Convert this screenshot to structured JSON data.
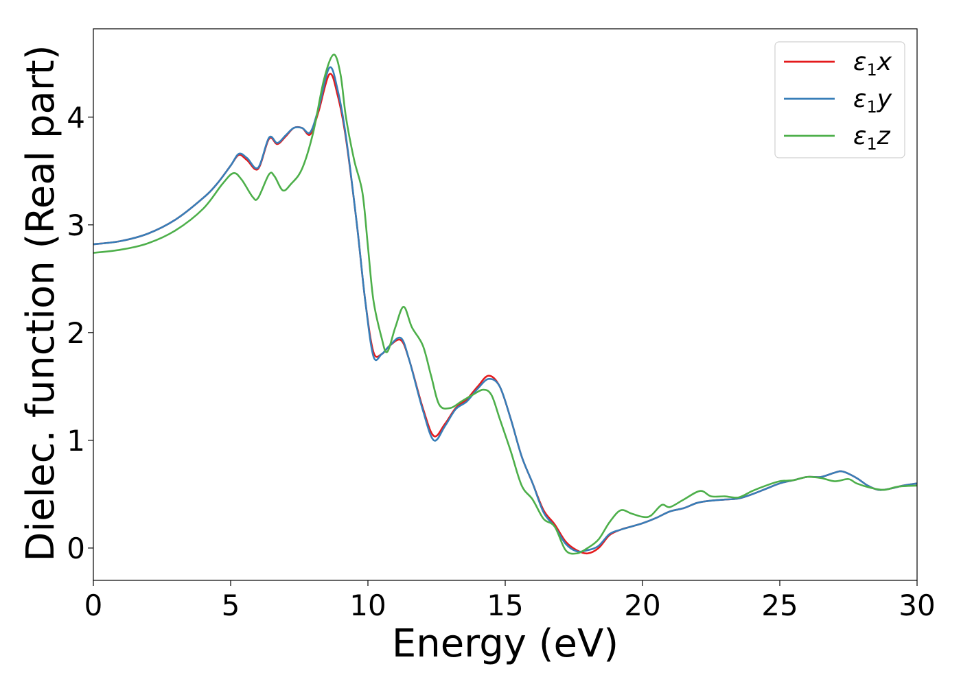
{
  "chart_data": {
    "type": "line",
    "title": "",
    "xlabel": "Energy (eV)",
    "ylabel": "Dielec. function (Real part)",
    "xlim": [
      0,
      30
    ],
    "ylim": [
      -0.3,
      4.82
    ],
    "xticks": [
      0,
      5,
      10,
      15,
      20,
      25,
      30
    ],
    "yticks": [
      0,
      1,
      2,
      3,
      4
    ],
    "grid": false,
    "legend_position": "top-right",
    "series": [
      {
        "name": "ε1x",
        "legend_base": "ε",
        "legend_sub": "1",
        "legend_suffix": "x",
        "color": "#e41a1c",
        "points": [
          [
            0,
            2.82
          ],
          [
            1,
            2.85
          ],
          [
            2,
            2.92
          ],
          [
            3,
            3.05
          ],
          [
            4,
            3.25
          ],
          [
            4.5,
            3.38
          ],
          [
            5.0,
            3.55
          ],
          [
            5.3,
            3.65
          ],
          [
            5.6,
            3.6
          ],
          [
            6.0,
            3.52
          ],
          [
            6.4,
            3.8
          ],
          [
            6.7,
            3.75
          ],
          [
            7.0,
            3.82
          ],
          [
            7.3,
            3.9
          ],
          [
            7.6,
            3.9
          ],
          [
            7.9,
            3.84
          ],
          [
            8.2,
            4.05
          ],
          [
            8.6,
            4.4
          ],
          [
            8.9,
            4.2
          ],
          [
            9.2,
            3.8
          ],
          [
            9.6,
            3.0
          ],
          [
            9.9,
            2.3
          ],
          [
            10.2,
            1.82
          ],
          [
            10.5,
            1.8
          ],
          [
            10.8,
            1.88
          ],
          [
            11.2,
            1.93
          ],
          [
            11.5,
            1.75
          ],
          [
            12.0,
            1.3
          ],
          [
            12.4,
            1.04
          ],
          [
            12.8,
            1.15
          ],
          [
            13.2,
            1.3
          ],
          [
            13.6,
            1.38
          ],
          [
            14.0,
            1.5
          ],
          [
            14.4,
            1.6
          ],
          [
            14.8,
            1.5
          ],
          [
            15.2,
            1.2
          ],
          [
            15.6,
            0.85
          ],
          [
            16.0,
            0.6
          ],
          [
            16.4,
            0.35
          ],
          [
            16.8,
            0.22
          ],
          [
            17.2,
            0.06
          ],
          [
            17.6,
            -0.02
          ],
          [
            18.0,
            -0.05
          ],
          [
            18.4,
            0.0
          ],
          [
            18.8,
            0.12
          ],
          [
            19.2,
            0.17
          ],
          [
            19.6,
            0.2
          ],
          [
            20.0,
            0.23
          ],
          [
            20.5,
            0.28
          ],
          [
            21.0,
            0.34
          ],
          [
            21.5,
            0.37
          ],
          [
            22.0,
            0.42
          ],
          [
            22.5,
            0.44
          ],
          [
            23.0,
            0.45
          ],
          [
            23.5,
            0.46
          ],
          [
            24.0,
            0.5
          ],
          [
            24.5,
            0.55
          ],
          [
            25.0,
            0.6
          ],
          [
            25.5,
            0.63
          ],
          [
            26.0,
            0.66
          ],
          [
            26.5,
            0.66
          ],
          [
            27.0,
            0.7
          ],
          [
            27.3,
            0.71
          ],
          [
            27.8,
            0.65
          ],
          [
            28.2,
            0.58
          ],
          [
            28.6,
            0.54
          ],
          [
            29.0,
            0.55
          ],
          [
            29.5,
            0.58
          ],
          [
            30,
            0.6
          ]
        ]
      },
      {
        "name": "ε1y",
        "legend_base": "ε",
        "legend_sub": "1",
        "legend_suffix": "y",
        "color": "#377eb8",
        "points": [
          [
            0,
            2.82
          ],
          [
            1,
            2.85
          ],
          [
            2,
            2.92
          ],
          [
            3,
            3.05
          ],
          [
            4,
            3.25
          ],
          [
            4.5,
            3.38
          ],
          [
            5.0,
            3.55
          ],
          [
            5.3,
            3.66
          ],
          [
            5.6,
            3.62
          ],
          [
            6.0,
            3.53
          ],
          [
            6.4,
            3.81
          ],
          [
            6.7,
            3.76
          ],
          [
            7.0,
            3.83
          ],
          [
            7.3,
            3.9
          ],
          [
            7.6,
            3.9
          ],
          [
            7.9,
            3.86
          ],
          [
            8.2,
            4.08
          ],
          [
            8.6,
            4.46
          ],
          [
            8.9,
            4.25
          ],
          [
            9.2,
            3.82
          ],
          [
            9.6,
            3.0
          ],
          [
            9.9,
            2.3
          ],
          [
            10.2,
            1.78
          ],
          [
            10.5,
            1.8
          ],
          [
            10.8,
            1.88
          ],
          [
            11.2,
            1.95
          ],
          [
            11.5,
            1.75
          ],
          [
            12.0,
            1.28
          ],
          [
            12.4,
            1.0
          ],
          [
            12.8,
            1.13
          ],
          [
            13.2,
            1.29
          ],
          [
            13.6,
            1.36
          ],
          [
            14.0,
            1.48
          ],
          [
            14.4,
            1.57
          ],
          [
            14.8,
            1.5
          ],
          [
            15.2,
            1.2
          ],
          [
            15.6,
            0.85
          ],
          [
            16.0,
            0.6
          ],
          [
            16.4,
            0.33
          ],
          [
            16.8,
            0.2
          ],
          [
            17.2,
            0.04
          ],
          [
            17.6,
            -0.03
          ],
          [
            18.0,
            -0.02
          ],
          [
            18.4,
            0.02
          ],
          [
            18.8,
            0.13
          ],
          [
            19.2,
            0.17
          ],
          [
            19.6,
            0.2
          ],
          [
            20.0,
            0.23
          ],
          [
            20.5,
            0.28
          ],
          [
            21.0,
            0.34
          ],
          [
            21.5,
            0.37
          ],
          [
            22.0,
            0.42
          ],
          [
            22.5,
            0.44
          ],
          [
            23.0,
            0.45
          ],
          [
            23.5,
            0.46
          ],
          [
            24.0,
            0.5
          ],
          [
            24.5,
            0.55
          ],
          [
            25.0,
            0.6
          ],
          [
            25.5,
            0.63
          ],
          [
            26.0,
            0.66
          ],
          [
            26.5,
            0.66
          ],
          [
            27.0,
            0.7
          ],
          [
            27.3,
            0.71
          ],
          [
            27.8,
            0.65
          ],
          [
            28.2,
            0.58
          ],
          [
            28.6,
            0.54
          ],
          [
            29.0,
            0.55
          ],
          [
            29.5,
            0.58
          ],
          [
            30,
            0.6
          ]
        ]
      },
      {
        "name": "ε1z",
        "legend_base": "ε",
        "legend_sub": "1",
        "legend_suffix": "z",
        "color": "#4daf4a",
        "points": [
          [
            0,
            2.74
          ],
          [
            1,
            2.77
          ],
          [
            2,
            2.83
          ],
          [
            3,
            2.95
          ],
          [
            4,
            3.15
          ],
          [
            4.7,
            3.38
          ],
          [
            5.1,
            3.48
          ],
          [
            5.4,
            3.42
          ],
          [
            5.8,
            3.26
          ],
          [
            6.0,
            3.25
          ],
          [
            6.4,
            3.47
          ],
          [
            6.6,
            3.45
          ],
          [
            6.9,
            3.32
          ],
          [
            7.2,
            3.38
          ],
          [
            7.6,
            3.52
          ],
          [
            8.0,
            3.85
          ],
          [
            8.4,
            4.35
          ],
          [
            8.75,
            4.58
          ],
          [
            9.0,
            4.4
          ],
          [
            9.2,
            4.0
          ],
          [
            9.5,
            3.6
          ],
          [
            9.8,
            3.3
          ],
          [
            10.0,
            2.8
          ],
          [
            10.2,
            2.3
          ],
          [
            10.5,
            1.95
          ],
          [
            10.7,
            1.82
          ],
          [
            11.0,
            2.05
          ],
          [
            11.3,
            2.24
          ],
          [
            11.6,
            2.05
          ],
          [
            12.0,
            1.88
          ],
          [
            12.3,
            1.6
          ],
          [
            12.6,
            1.33
          ],
          [
            13.0,
            1.3
          ],
          [
            13.4,
            1.36
          ],
          [
            13.8,
            1.42
          ],
          [
            14.2,
            1.47
          ],
          [
            14.5,
            1.42
          ],
          [
            14.8,
            1.2
          ],
          [
            15.2,
            0.9
          ],
          [
            15.6,
            0.58
          ],
          [
            16.0,
            0.45
          ],
          [
            16.4,
            0.27
          ],
          [
            16.8,
            0.2
          ],
          [
            17.2,
            -0.02
          ],
          [
            17.6,
            -0.05
          ],
          [
            18.0,
            0.0
          ],
          [
            18.4,
            0.08
          ],
          [
            18.8,
            0.24
          ],
          [
            19.2,
            0.35
          ],
          [
            19.6,
            0.32
          ],
          [
            20.0,
            0.29
          ],
          [
            20.3,
            0.3
          ],
          [
            20.7,
            0.4
          ],
          [
            21.0,
            0.38
          ],
          [
            21.5,
            0.45
          ],
          [
            22.1,
            0.53
          ],
          [
            22.5,
            0.48
          ],
          [
            23.0,
            0.48
          ],
          [
            23.5,
            0.47
          ],
          [
            24.0,
            0.53
          ],
          [
            24.5,
            0.58
          ],
          [
            25.0,
            0.62
          ],
          [
            25.5,
            0.63
          ],
          [
            26.0,
            0.66
          ],
          [
            26.5,
            0.65
          ],
          [
            27.0,
            0.62
          ],
          [
            27.5,
            0.64
          ],
          [
            27.8,
            0.6
          ],
          [
            28.3,
            0.56
          ],
          [
            28.8,
            0.54
          ],
          [
            29.3,
            0.57
          ],
          [
            30,
            0.58
          ]
        ]
      }
    ]
  }
}
